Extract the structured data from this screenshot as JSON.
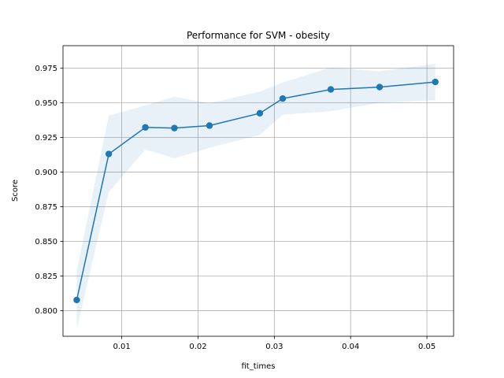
{
  "chart_data": {
    "type": "line",
    "title": "Performance for SVM - obesity",
    "xlabel": "fit_times",
    "ylabel": "Score",
    "xlim": [
      0.0023,
      0.0535
    ],
    "ylim": [
      0.7815,
      0.9913
    ],
    "grid": true,
    "x_ticks": [
      0.01,
      0.02,
      0.03,
      0.04,
      0.05
    ],
    "x_tick_labels": [
      "0.01",
      "0.02",
      "0.03",
      "0.04",
      "0.05"
    ],
    "y_ticks": [
      0.8,
      0.825,
      0.85,
      0.875,
      0.9,
      0.925,
      0.95,
      0.975
    ],
    "y_tick_labels": [
      "0.800",
      "0.825",
      "0.850",
      "0.875",
      "0.900",
      "0.925",
      "0.950",
      "0.975"
    ],
    "line_color": "#1f77b4",
    "band_color": "#1f77b4",
    "band_opacity": 0.1,
    "series": [
      {
        "x": [
          0.0041,
          0.0083,
          0.0131,
          0.0169,
          0.0215,
          0.0281,
          0.0311,
          0.0374,
          0.0438,
          0.0511
        ],
        "values": [
          0.8077,
          0.9131,
          0.9323,
          0.9318,
          0.9336,
          0.9425,
          0.9531,
          0.9597,
          0.9614,
          0.9651
        ],
        "lower": [
          0.7866,
          0.8856,
          0.9164,
          0.91,
          0.9175,
          0.927,
          0.9415,
          0.944,
          0.95,
          0.9519
        ],
        "upper": [
          0.8289,
          0.9407,
          0.9482,
          0.9545,
          0.9497,
          0.9581,
          0.9647,
          0.9755,
          0.9728,
          0.9783
        ]
      }
    ]
  }
}
